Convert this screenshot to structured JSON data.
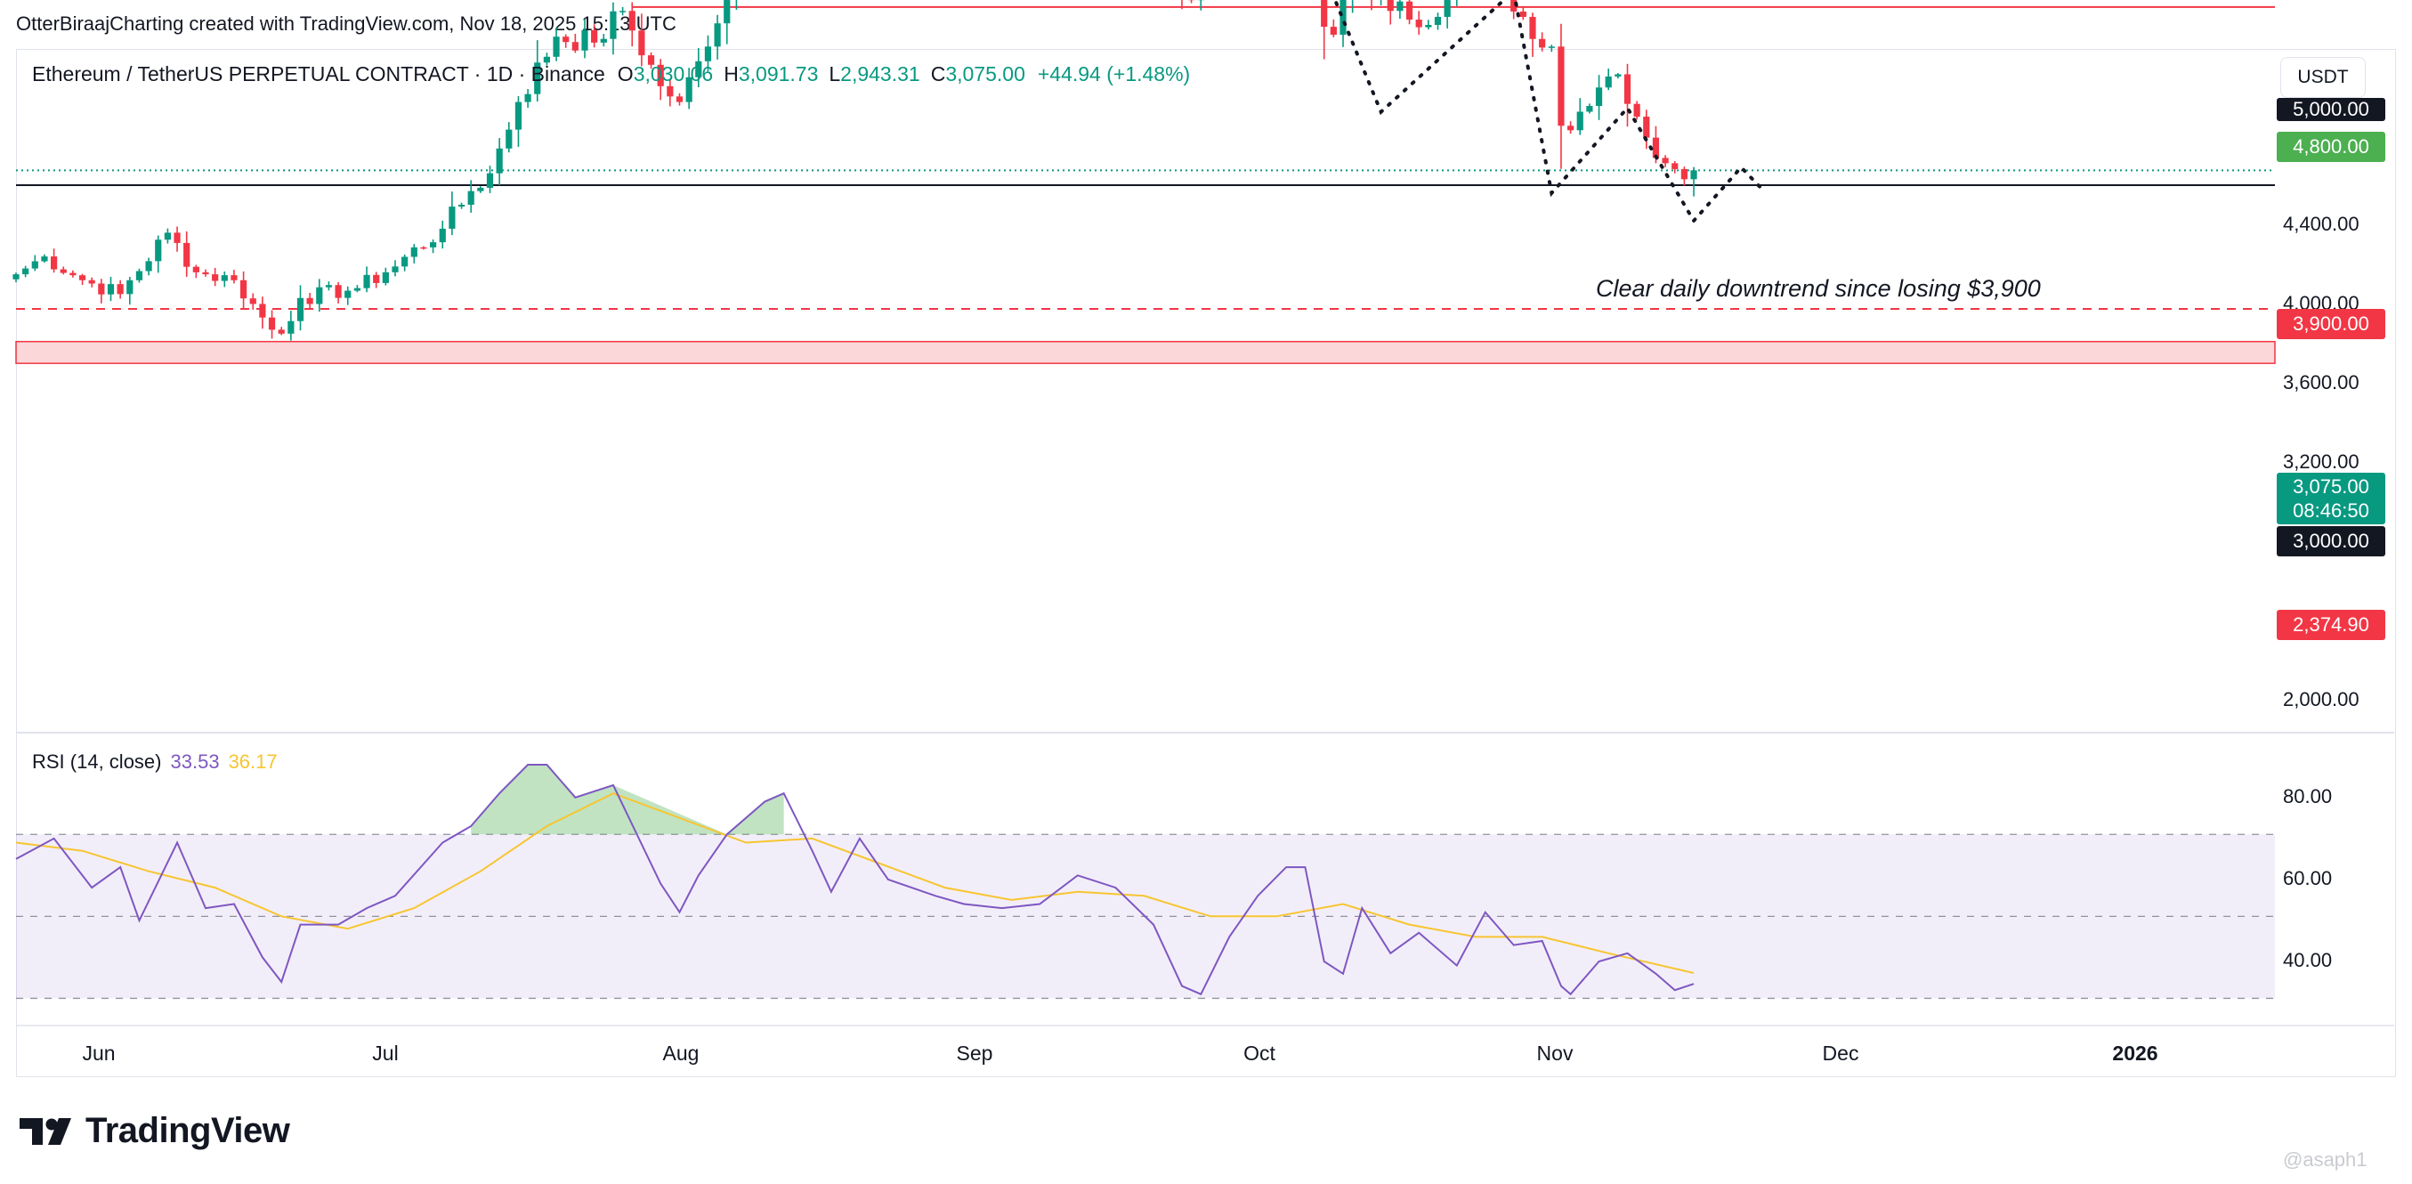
{
  "header": {
    "text": "OtterBiraajCharting created with TradingView.com, Nov 18, 2025 15:13 UTC"
  },
  "symbol": {
    "name": "Ethereum / TetherUS PERPETUAL CONTRACT · 1D · Binance",
    "open_label": "O",
    "open": "3,030.06",
    "high_label": "H",
    "high": "3,091.73",
    "low_label": "L",
    "low": "2,943.31",
    "close_label": "C",
    "close": "3,075.00",
    "change": "+44.94 (+1.48%)"
  },
  "currency": "USDT",
  "annotation": "Clear daily downtrend since losing $3,900",
  "rsi": {
    "title": "RSI (14, close)",
    "value": "33.53",
    "ma_value": "36.17"
  },
  "price_axis": {
    "labels": [
      "4,400.00",
      "4,000.00",
      "3,600.00",
      "3,200.00",
      "2,000.00"
    ],
    "top_tag": "5,000.00",
    "tag_4800": "4,800.00",
    "tag_3900": "3,900.00",
    "tag_3000": "3,000.00",
    "tag_2374": "2,374.90",
    "current_price": "3,075.00",
    "countdown": "08:46:50"
  },
  "rsi_axis": {
    "labels": [
      "80.00",
      "60.00",
      "40.00"
    ]
  },
  "time_axis": {
    "months": [
      "Jun",
      "Jul",
      "Aug",
      "Sep",
      "Oct",
      "Nov",
      "Dec",
      "2026"
    ]
  },
  "branding": {
    "logo_text": "TradingView",
    "watermark": "@asaph1"
  },
  "colors": {
    "up": "#089981",
    "down": "#f23645",
    "rsi_line": "#7e57c2",
    "rsi_ma": "#f7c531",
    "resistance": "#4caf50",
    "support": "#f23645"
  },
  "chart_data": [
    {
      "type": "candlestick",
      "title": "Ethereum / TetherUS PERPETUAL CONTRACT · 1D · Binance",
      "x_range": [
        "2025-05-25",
        "2026-01-10"
      ],
      "ylim": [
        1870,
        5020
      ],
      "anchors": [
        [
          "2025-05-25",
          2550
        ],
        [
          "2025-05-28",
          2640
        ],
        [
          "2025-06-01",
          2520
        ],
        [
          "2025-06-05",
          2450
        ],
        [
          "2025-06-10",
          2760
        ],
        [
          "2025-06-13",
          2560
        ],
        [
          "2025-06-17",
          2520
        ],
        [
          "2025-06-21",
          2270
        ],
        [
          "2025-06-22",
          2250
        ],
        [
          "2025-06-24",
          2430
        ],
        [
          "2025-06-30",
          2480
        ],
        [
          "2025-07-03",
          2560
        ],
        [
          "2025-07-09",
          2780
        ],
        [
          "2025-07-12",
          2970
        ],
        [
          "2025-07-14",
          3060
        ],
        [
          "2025-07-17",
          3420
        ],
        [
          "2025-07-21",
          3750
        ],
        [
          "2025-07-25",
          3720
        ],
        [
          "2025-07-28",
          3880
        ],
        [
          "2025-08-01",
          3500
        ],
        [
          "2025-08-03",
          3420
        ],
        [
          "2025-08-06",
          3700
        ],
        [
          "2025-08-09",
          4200
        ],
        [
          "2025-08-13",
          4750
        ],
        [
          "2025-08-17",
          4420
        ],
        [
          "2025-08-19",
          4100
        ],
        [
          "2025-08-22",
          4800
        ],
        [
          "2025-08-24",
          4810
        ],
        [
          "2025-08-26",
          4380
        ],
        [
          "2025-09-01",
          4320
        ],
        [
          "2025-09-06",
          4300
        ],
        [
          "2025-09-10",
          4340
        ],
        [
          "2025-09-13",
          4700
        ],
        [
          "2025-09-17",
          4550
        ],
        [
          "2025-09-21",
          4460
        ],
        [
          "2025-09-25",
          3950
        ],
        [
          "2025-09-28",
          4000
        ],
        [
          "2025-10-02",
          4450
        ],
        [
          "2025-10-06",
          4700
        ],
        [
          "2025-10-08",
          4500
        ],
        [
          "2025-10-10",
          3800
        ],
        [
          "2025-10-11",
          3760
        ],
        [
          "2025-10-13",
          4100
        ],
        [
          "2025-10-17",
          3880
        ],
        [
          "2025-10-22",
          3850
        ],
        [
          "2025-10-27",
          4140
        ],
        [
          "2025-10-31",
          3850
        ],
        [
          "2025-11-03",
          3700
        ],
        [
          "2025-11-04",
          3300
        ],
        [
          "2025-11-07",
          3400
        ],
        [
          "2025-11-10",
          3560
        ],
        [
          "2025-11-13",
          3240
        ],
        [
          "2025-11-17",
          3030
        ],
        [
          "2025-11-18",
          3075
        ]
      ],
      "last_ohlc": {
        "open": 3030.06,
        "high": 3091.73,
        "low": 2943.31,
        "close": 3075.0
      },
      "horizontal_levels": [
        {
          "price": 5000,
          "style": "solid",
          "color": "#131722"
        },
        {
          "price": 4800,
          "style": "solid",
          "color": "#4caf50",
          "from": "2025-08-13"
        },
        {
          "price": 3900,
          "style": "solid",
          "color": "#f23645",
          "from": "2025-07-29"
        },
        {
          "price": 3075,
          "style": "dotted",
          "color": "#089981"
        },
        {
          "price": 3000,
          "style": "solid",
          "color": "#131722"
        },
        {
          "price": 2374.9,
          "style": "dashed",
          "color": "#f23645"
        }
      ],
      "support_zone": [
        2100,
        2210
      ],
      "touch_circles": [
        [
          "2025-08-13",
          4800
        ],
        [
          "2025-08-23",
          4800
        ],
        [
          "2025-09-13",
          4800
        ],
        [
          "2025-10-07",
          4800
        ]
      ],
      "projection_path": [
        [
          "2025-10-07",
          4420
        ],
        [
          "2025-10-16",
          3370
        ],
        [
          "2025-10-30",
          3980
        ],
        [
          "2025-11-03",
          2960
        ],
        [
          "2025-11-11",
          3390
        ],
        [
          "2025-11-18",
          2820
        ],
        [
          "2025-11-23",
          3090
        ],
        [
          "2025-11-25",
          2990
        ]
      ],
      "annotation": "Clear daily downtrend since losing $3,900"
    },
    {
      "type": "line",
      "title": "RSI (14, close)",
      "ylim": [
        27,
        92
      ],
      "bands": {
        "upper": 70,
        "middle": 50,
        "lower": 30
      },
      "series": [
        {
          "name": "RSI",
          "color": "#7e57c2",
          "points": [
            [
              "2025-05-25",
              64
            ],
            [
              "2025-05-29",
              69
            ],
            [
              "2025-06-02",
              57
            ],
            [
              "2025-06-05",
              62
            ],
            [
              "2025-06-07",
              49
            ],
            [
              "2025-06-11",
              68
            ],
            [
              "2025-06-14",
              52
            ],
            [
              "2025-06-17",
              53
            ],
            [
              "2025-06-20",
              40
            ],
            [
              "2025-06-22",
              34
            ],
            [
              "2025-06-24",
              48
            ],
            [
              "2025-06-28",
              48
            ],
            [
              "2025-07-01",
              52
            ],
            [
              "2025-07-04",
              55
            ],
            [
              "2025-07-09",
              68
            ],
            [
              "2025-07-12",
              72
            ],
            [
              "2025-07-15",
              80
            ],
            [
              "2025-07-18",
              87
            ],
            [
              "2025-07-20",
              87
            ],
            [
              "2025-07-23",
              79
            ],
            [
              "2025-07-27",
              82
            ],
            [
              "2025-08-01",
              58
            ],
            [
              "2025-08-03",
              51
            ],
            [
              "2025-08-05",
              60
            ],
            [
              "2025-08-08",
              70
            ],
            [
              "2025-08-12",
              78
            ],
            [
              "2025-08-14",
              80
            ],
            [
              "2025-08-17",
              66
            ],
            [
              "2025-08-19",
              56
            ],
            [
              "2025-08-22",
              69
            ],
            [
              "2025-08-25",
              59
            ],
            [
              "2025-08-30",
              55
            ],
            [
              "2025-09-02",
              53
            ],
            [
              "2025-09-06",
              52
            ],
            [
              "2025-09-10",
              53
            ],
            [
              "2025-09-14",
              60
            ],
            [
              "2025-09-18",
              57
            ],
            [
              "2025-09-22",
              48
            ],
            [
              "2025-09-25",
              33
            ],
            [
              "2025-09-27",
              31
            ],
            [
              "2025-09-30",
              45
            ],
            [
              "2025-10-03",
              55
            ],
            [
              "2025-10-06",
              62
            ],
            [
              "2025-10-08",
              62
            ],
            [
              "2025-10-10",
              39
            ],
            [
              "2025-10-12",
              36
            ],
            [
              "2025-10-14",
              52
            ],
            [
              "2025-10-17",
              41
            ],
            [
              "2025-10-20",
              46
            ],
            [
              "2025-10-24",
              38
            ],
            [
              "2025-10-27",
              51
            ],
            [
              "2025-10-30",
              43
            ],
            [
              "2025-11-02",
              44
            ],
            [
              "2025-11-04",
              33
            ],
            [
              "2025-11-05",
              31
            ],
            [
              "2025-11-08",
              39
            ],
            [
              "2025-11-11",
              41
            ],
            [
              "2025-11-14",
              36
            ],
            [
              "2025-11-16",
              32
            ],
            [
              "2025-11-18",
              33.53
            ]
          ]
        },
        {
          "name": "RSI-based MA",
          "color": "#f7c531",
          "points": [
            [
              "2025-05-25",
              68
            ],
            [
              "2025-06-01",
              66
            ],
            [
              "2025-06-08",
              61
            ],
            [
              "2025-06-15",
              57
            ],
            [
              "2025-06-22",
              50
            ],
            [
              "2025-06-29",
              47
            ],
            [
              "2025-07-06",
              52
            ],
            [
              "2025-07-13",
              61
            ],
            [
              "2025-07-20",
              72
            ],
            [
              "2025-07-27",
              80
            ],
            [
              "2025-08-03",
              74
            ],
            [
              "2025-08-10",
              68
            ],
            [
              "2025-08-17",
              69
            ],
            [
              "2025-08-24",
              63
            ],
            [
              "2025-08-31",
              57
            ],
            [
              "2025-09-07",
              54
            ],
            [
              "2025-09-14",
              56
            ],
            [
              "2025-09-21",
              55
            ],
            [
              "2025-09-28",
              50
            ],
            [
              "2025-10-05",
              50
            ],
            [
              "2025-10-12",
              53
            ],
            [
              "2025-10-19",
              48
            ],
            [
              "2025-10-26",
              45
            ],
            [
              "2025-11-02",
              45
            ],
            [
              "2025-11-09",
              41
            ],
            [
              "2025-11-18",
              36.17
            ]
          ]
        }
      ]
    }
  ]
}
